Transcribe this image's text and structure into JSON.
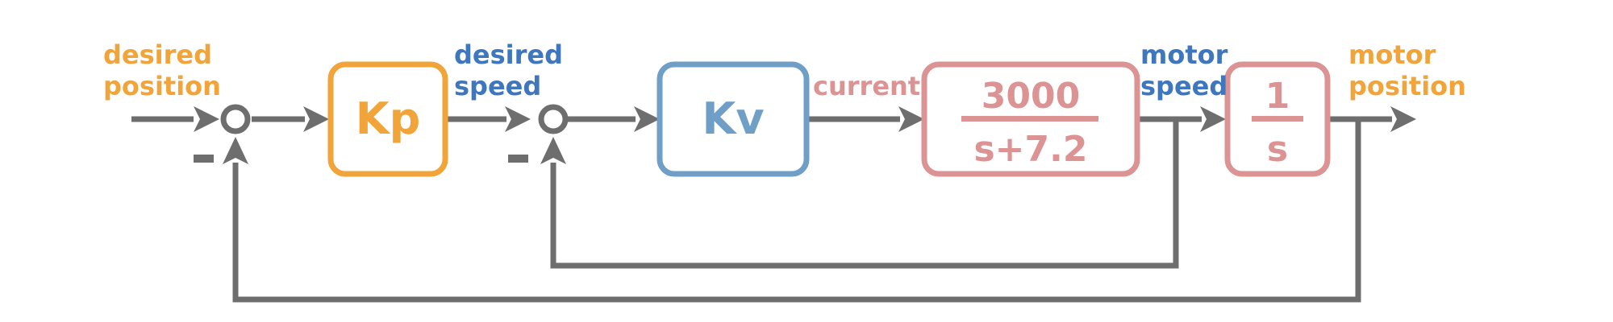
{
  "colors": {
    "orange": "#f0a43a",
    "blue": "#3f77bf",
    "kv_blue": "#6f9fc6",
    "pink": "#dc9394",
    "wire": "#6e6e6e"
  },
  "signals": {
    "desired_position": [
      "desired",
      "position"
    ],
    "desired_speed": [
      "desired",
      "speed"
    ],
    "current": "current",
    "motor_speed": [
      "motor",
      "speed"
    ],
    "motor_position": [
      "motor",
      "position"
    ]
  },
  "blocks": {
    "kp": "Kp",
    "kv": "Kv",
    "motor": {
      "numerator": "3000",
      "denominator": "s+7.2"
    },
    "integrator": {
      "numerator": "1",
      "denominator": "s"
    }
  },
  "sum_signs": {
    "position_feedback": "−",
    "speed_feedback": "−"
  }
}
